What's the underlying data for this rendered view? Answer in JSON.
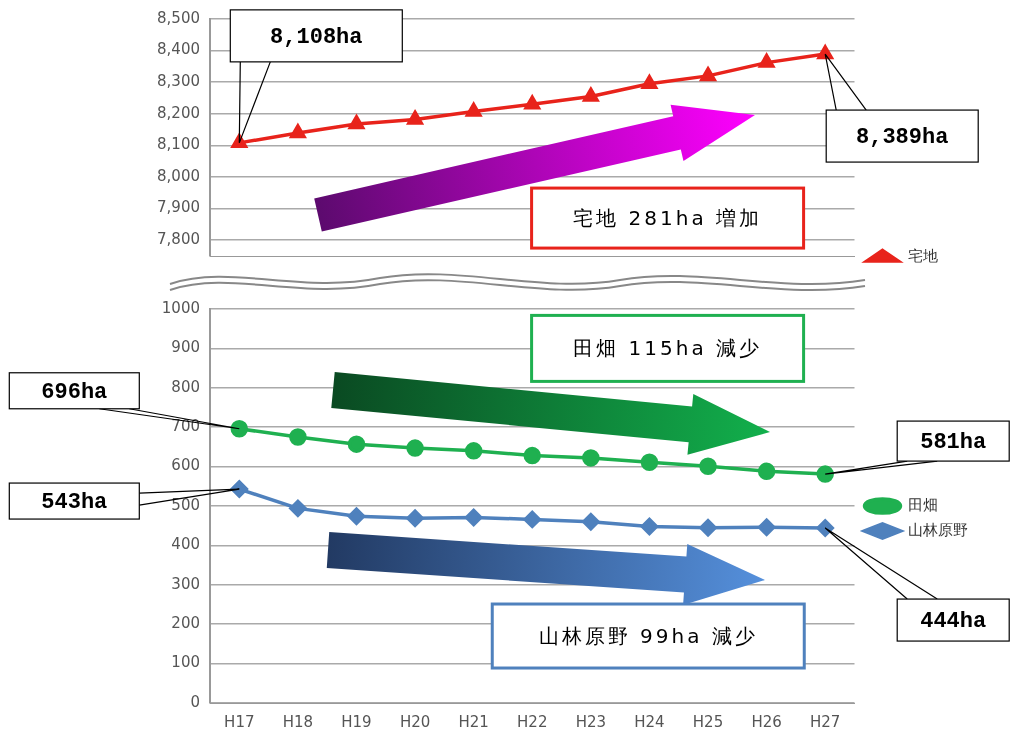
{
  "chart_data": [
    {
      "type": "line",
      "categories": [
        null,
        null,
        null,
        null,
        null,
        null,
        null,
        null,
        null,
        null,
        null
      ],
      "series": [
        {
          "name": "宅地",
          "color": "#e8231b",
          "marker": "triangle",
          "values": [
            8108,
            8139,
            8168,
            8182,
            8207,
            8230,
            8255,
            8295,
            8320,
            8362,
            8389
          ]
        }
      ],
      "ylim": [
        7750,
        8500
      ],
      "yticks": [
        {
          "value": 7800,
          "label": "7,800"
        },
        {
          "value": 7900,
          "label": "7,900"
        },
        {
          "value": 8000,
          "label": "8,000"
        },
        {
          "value": 8100,
          "label": "8,100"
        },
        {
          "value": 8200,
          "label": "8,200"
        },
        {
          "value": 8300,
          "label": "8,300"
        },
        {
          "value": 8400,
          "label": "8,400"
        },
        {
          "value": 8500,
          "label": "8,500"
        }
      ],
      "grid": "y",
      "legend": "right",
      "tick_labels": "y",
      "line_style": "solid",
      "annotations": [
        "8,108ha",
        "8,389ha",
        "宅地 281ha 増加"
      ]
    },
    {
      "type": "line",
      "categories": [
        "H17",
        "H18",
        "H19",
        "H20",
        "H21",
        "H22",
        "H23",
        "H24",
        "H25",
        "H26",
        "H27"
      ],
      "series": [
        {
          "name": "田畑",
          "color": "#1fb050",
          "marker": "circle",
          "values": [
            696,
            675,
            657,
            647,
            640,
            628,
            622,
            611,
            601,
            588,
            581
          ]
        },
        {
          "name": "山林原野",
          "color": "#4f81bd",
          "marker": "diamond",
          "values": [
            543,
            494,
            474,
            469,
            471,
            466,
            460,
            448,
            445,
            446,
            444
          ]
        }
      ],
      "ylim": [
        0,
        1000
      ],
      "yticks": [
        0,
        100,
        200,
        300,
        400,
        500,
        600,
        700,
        800,
        900,
        1000
      ],
      "grid": "y",
      "legend": "right",
      "line_style": "solid",
      "annotations": [
        "696ha",
        "581ha",
        "543ha",
        "444ha",
        "田畑 115ha 減少",
        "山林原野 99ha 減少"
      ]
    }
  ]
}
